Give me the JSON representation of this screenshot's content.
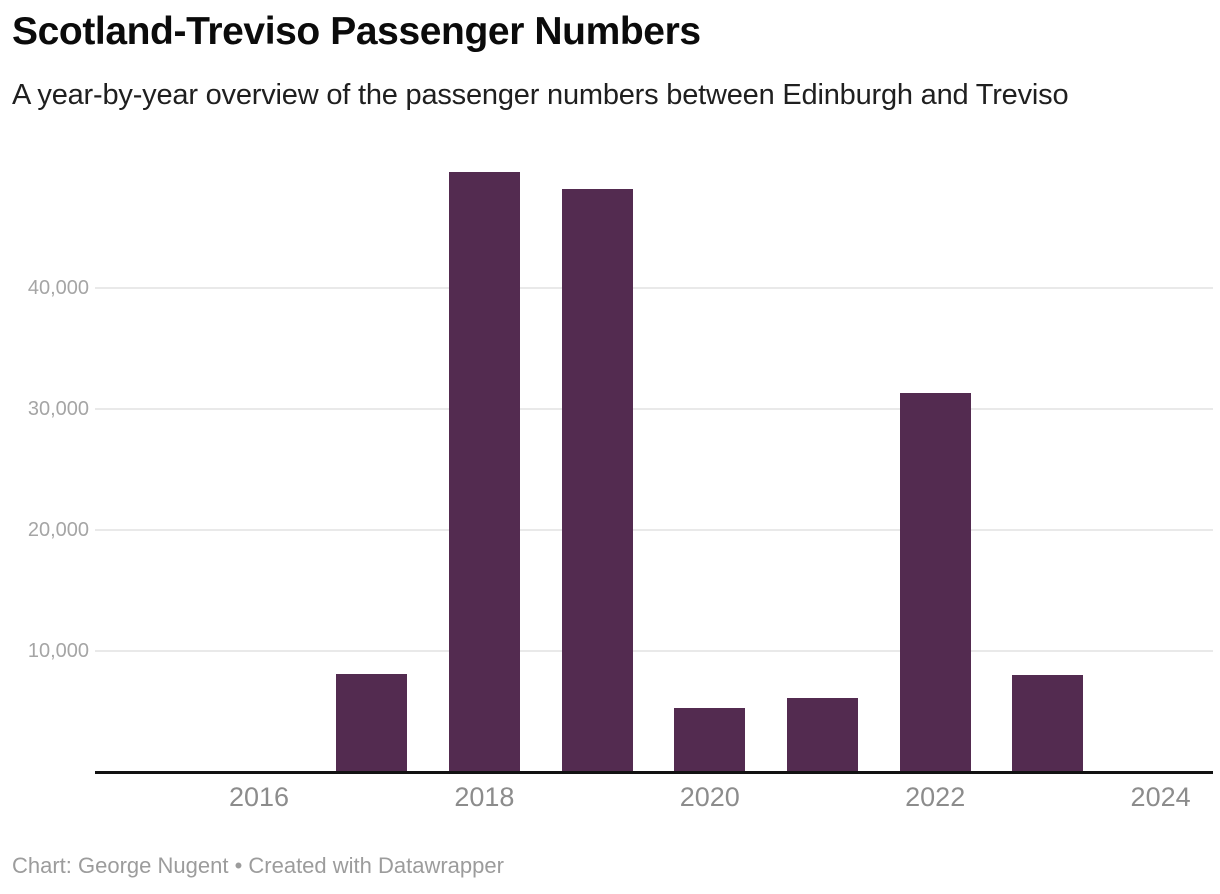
{
  "header": {
    "title": "Scotland-Treviso Passenger Numbers",
    "subtitle": "A year-by-year overview of the passenger numbers between Edinburgh and Treviso"
  },
  "footer": {
    "byline": "Chart: George Nugent • Created with Datawrapper"
  },
  "colors": {
    "bar": "#532b50",
    "gridline": "#e9e9e9",
    "axis_line": "#121212",
    "title": "#0b0b0b",
    "subtitle": "#1f1f1f",
    "y_tick": "#a5a5a5",
    "x_tick": "#8c8c8c",
    "byline": "#9c9c9c",
    "background": "#ffffff"
  },
  "chart_data": {
    "type": "bar",
    "title": "Scotland-Treviso Passenger Numbers",
    "subtitle": "A year-by-year overview of the passenger numbers between Edinburgh and Treviso",
    "byline": "Chart: George Nugent • Created with Datawrapper",
    "xlabel": "",
    "ylabel": "",
    "categories": [
      2015,
      2016,
      2017,
      2018,
      2019,
      2020,
      2021,
      2022,
      2023,
      2024
    ],
    "values": [
      0,
      0,
      8100,
      49600,
      48200,
      5300,
      6100,
      31300,
      8000,
      0
    ],
    "x_ticks": [
      2016,
      2018,
      2020,
      2022,
      2024
    ],
    "x_tick_labels": [
      "2016",
      "2018",
      "2020",
      "2022",
      "2024"
    ],
    "y_ticks": [
      10000,
      20000,
      30000,
      40000
    ],
    "y_tick_labels": [
      "10,000",
      "20,000",
      "30,000",
      "40,000"
    ],
    "ylim": [
      0,
      51800
    ],
    "xlim": [
      2014.5,
      2024.5
    ],
    "grid": "horizontal-only",
    "legend": "none",
    "bar_color": "#532b50"
  }
}
